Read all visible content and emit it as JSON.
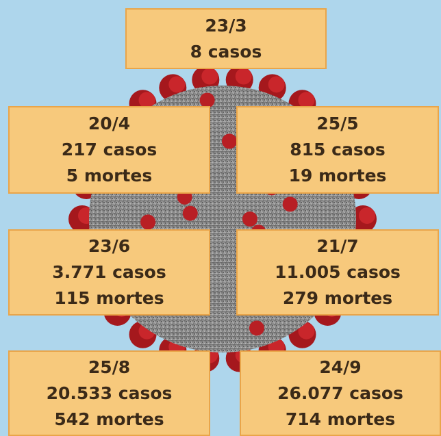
{
  "boxes": [
    {
      "date": "23/3",
      "cases": "8 casos"
    },
    {
      "date": "20/4",
      "cases": "217 casos",
      "deaths": "5 mortes"
    },
    {
      "date": "25/5",
      "cases": "815 casos",
      "deaths": "19 mortes"
    },
    {
      "date": "23/6",
      "cases": "3.771 casos",
      "deaths": "115 mortes"
    },
    {
      "date": "21/7",
      "cases": "11.005 casos",
      "deaths": "279 mortes"
    },
    {
      "date": "25/8",
      "cases": "20.533 casos",
      "deaths": "542 mortes"
    },
    {
      "date": "24/9",
      "cases": "26.077 casos",
      "deaths": "714 mortes"
    }
  ]
}
